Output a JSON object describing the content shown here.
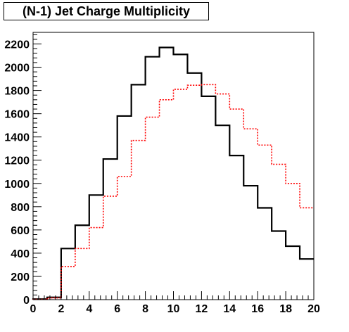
{
  "chart_data": {
    "type": "step",
    "title": "(N-1) Jet Charge Multiplicity",
    "xlabel": "",
    "ylabel": "",
    "xlim": [
      0,
      20
    ],
    "ylim": [
      0,
      2300
    ],
    "bin_edges": [
      0,
      1,
      2,
      3,
      4,
      5,
      6,
      7,
      8,
      9,
      10,
      11,
      12,
      13,
      14,
      15,
      16,
      17,
      18,
      19,
      20
    ],
    "x_ticks": [
      0,
      2,
      4,
      6,
      8,
      10,
      12,
      14,
      16,
      18,
      20
    ],
    "y_ticks": [
      0,
      200,
      400,
      600,
      800,
      1000,
      1200,
      1400,
      1600,
      1800,
      2000,
      2200
    ],
    "grid": false,
    "series": [
      {
        "style": "solid",
        "color": "#000000",
        "values": [
          5,
          20,
          440,
          640,
          900,
          1210,
          1580,
          1850,
          2090,
          2170,
          2110,
          1950,
          1750,
          1500,
          1240,
          980,
          790,
          590,
          460,
          350
        ]
      },
      {
        "style": "dotted",
        "color": "#ff0000",
        "values": [
          3,
          15,
          285,
          440,
          620,
          890,
          1060,
          1370,
          1570,
          1720,
          1810,
          1845,
          1850,
          1770,
          1640,
          1470,
          1330,
          1165,
          1000,
          790
        ]
      }
    ]
  }
}
